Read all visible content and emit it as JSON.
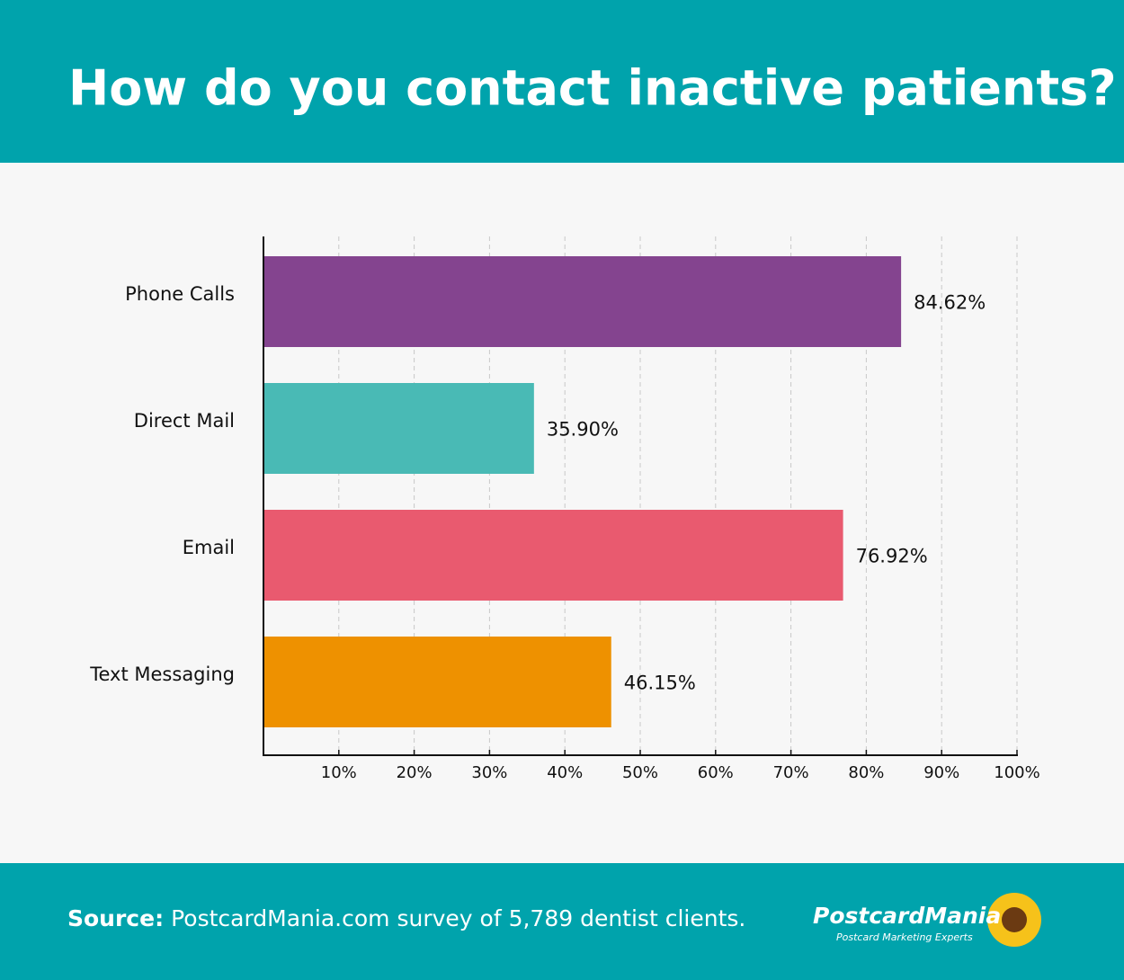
{
  "chart_data": {
    "type": "barh",
    "title": "How do you contact inactive patients?",
    "categories": [
      "Phone Calls",
      "Direct Mail",
      "Email",
      "Text Messaging"
    ],
    "values": [
      84.62,
      35.9,
      76.92,
      46.15
    ],
    "value_labels": [
      "84.62%",
      "35.90%",
      "76.92%",
      "46.15%"
    ],
    "colors": [
      "#84448f",
      "#49bab5",
      "#e95a6f",
      "#ee9100"
    ],
    "xlim": [
      0,
      100
    ],
    "xticks": [
      {
        "value": 10,
        "label": "10%"
      },
      {
        "value": 20,
        "label": "20%"
      },
      {
        "value": 30,
        "label": "30%"
      },
      {
        "value": 40,
        "label": "40%"
      },
      {
        "value": 50,
        "label": "50%"
      },
      {
        "value": 60,
        "label": "60%"
      },
      {
        "value": 70,
        "label": "70%"
      },
      {
        "value": 80,
        "label": "80%"
      },
      {
        "value": 90,
        "label": "90%"
      },
      {
        "value": 100,
        "label": "100%"
      }
    ],
    "grid": true
  },
  "footer": {
    "source_label": "Source:",
    "source_text": "PostcardMania.com survey of 5,789 dentist clients.",
    "logo": "PostcardMania",
    "tagline": "Postcard Marketing Experts"
  }
}
